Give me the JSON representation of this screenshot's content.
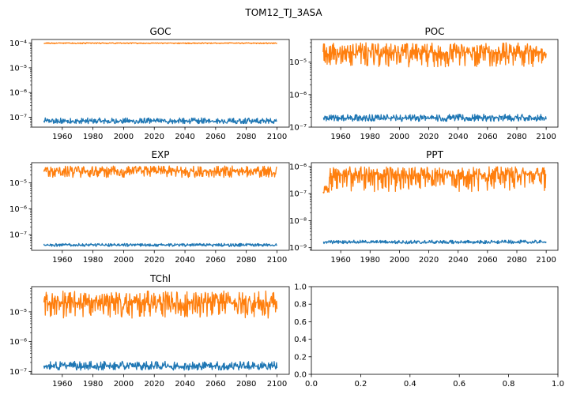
{
  "figure": {
    "suptitle": "TOM12_TJ_3ASA"
  },
  "colors": {
    "series_blue": "#1f77b4",
    "series_orange": "#ff7f0e",
    "axes": "#000000",
    "background": "#ffffff"
  },
  "chart_data": [
    {
      "type": "line",
      "title": "GOC",
      "yscale": "log",
      "xlim": [
        1940,
        2108
      ],
      "ylim": [
        4e-08,
        0.00014
      ],
      "xticks": [
        1960,
        1980,
        2000,
        2020,
        2040,
        2060,
        2080,
        2100
      ],
      "yticks": [
        1e-07,
        1e-06,
        1e-05,
        0.0001
      ],
      "yticklabels": [
        "10⁻⁷",
        "10⁻⁶",
        "10⁻⁵",
        "10⁻⁴"
      ],
      "series": [
        {
          "color": "#1f77b4",
          "x_start": 1948,
          "x_end": 2100,
          "level": 7e-08,
          "band_low": 5.5e-08,
          "band_high": 9.5e-08
        },
        {
          "color": "#ff7f0e",
          "x_start": 1948,
          "x_end": 2100,
          "level": 0.0001,
          "band_low": 9.4e-05,
          "band_high": 0.000104
        }
      ]
    },
    {
      "type": "line",
      "title": "POC",
      "yscale": "log",
      "xlim": [
        1940,
        2108
      ],
      "ylim": [
        1e-07,
        5e-05
      ],
      "xticks": [
        1960,
        1980,
        2000,
        2020,
        2040,
        2060,
        2080,
        2100
      ],
      "yticks": [
        1e-07,
        1e-06,
        1e-05
      ],
      "yticklabels": [
        "10⁻⁷",
        "10⁻⁶",
        "10⁻⁵"
      ],
      "series": [
        {
          "color": "#1f77b4",
          "x_start": 1948,
          "x_end": 2100,
          "level": 1.9e-07,
          "band_low": 1.5e-07,
          "band_high": 2.5e-07
        },
        {
          "color": "#ff7f0e",
          "x_start": 1948,
          "x_end": 2100,
          "level": 2e-05,
          "band_low": 7e-06,
          "band_high": 4e-05
        }
      ]
    },
    {
      "type": "line",
      "title": "EXP",
      "yscale": "log",
      "xlim": [
        1940,
        2108
      ],
      "ylim": [
        2.5e-08,
        6e-05
      ],
      "xticks": [
        1960,
        1980,
        2000,
        2020,
        2040,
        2060,
        2080,
        2100
      ],
      "yticks": [
        1e-07,
        1e-06,
        1e-05
      ],
      "yticklabels": [
        "10⁻⁷",
        "10⁻⁶",
        "10⁻⁵"
      ],
      "series": [
        {
          "color": "#1f77b4",
          "x_start": 1948,
          "x_end": 2100,
          "level": 4e-08,
          "band_low": 3.5e-08,
          "band_high": 4.6e-08
        },
        {
          "color": "#ff7f0e",
          "x_start": 1948,
          "x_end": 2100,
          "level": 2.8e-05,
          "band_low": 1.6e-05,
          "band_high": 4.5e-05
        }
      ]
    },
    {
      "type": "line",
      "title": "PPT",
      "yscale": "log",
      "xlim": [
        1940,
        2108
      ],
      "ylim": [
        8e-10,
        1.4e-06
      ],
      "xticks": [
        1960,
        1980,
        2000,
        2020,
        2040,
        2060,
        2080,
        2100
      ],
      "yticks": [
        1e-09,
        1e-08,
        1e-07,
        1e-06
      ],
      "yticklabels": [
        "10⁻⁹",
        "10⁻⁸",
        "10⁻⁷",
        "10⁻⁶"
      ],
      "series": [
        {
          "color": "#1f77b4",
          "x_start": 1948,
          "x_end": 2100,
          "level": 1.6e-09,
          "band_low": 1.4e-09,
          "band_high": 1.9e-09
        },
        {
          "color": "#ff7f0e",
          "x_start": 1948,
          "x_end": 2100,
          "level": 5e-07,
          "band_low": 1.2e-07,
          "band_high": 1e-06,
          "early_level": 1.3e-07,
          "early_until": 1952
        }
      ]
    },
    {
      "type": "line",
      "title": "TChl",
      "yscale": "log",
      "xlim": [
        1940,
        2108
      ],
      "ylim": [
        8e-08,
        7e-05
      ],
      "xticks": [
        1960,
        1980,
        2000,
        2020,
        2040,
        2060,
        2080,
        2100
      ],
      "yticks": [
        1e-07,
        1e-06,
        1e-05
      ],
      "yticklabels": [
        "10⁻⁷",
        "10⁻⁶",
        "10⁻⁵"
      ],
      "series": [
        {
          "color": "#1f77b4",
          "x_start": 1948,
          "x_end": 2100,
          "level": 1.5e-07,
          "band_low": 1.1e-07,
          "band_high": 2.2e-07
        },
        {
          "color": "#ff7f0e",
          "x_start": 1948,
          "x_end": 2100,
          "level": 2e-05,
          "band_low": 6e-06,
          "band_high": 5e-05
        }
      ]
    },
    {
      "type": "line",
      "title": "",
      "yscale": "linear",
      "xlim": [
        0,
        1
      ],
      "ylim": [
        0,
        1
      ],
      "xticks": [
        0.0,
        0.2,
        0.4,
        0.6,
        0.8,
        1.0
      ],
      "xticklabels": [
        "0.0",
        "0.2",
        "0.4",
        "0.6",
        "0.8",
        "1.0"
      ],
      "yticks": [
        0.0,
        0.2,
        0.4,
        0.6,
        0.8,
        1.0
      ],
      "yticklabels": [
        "0.0",
        "0.2",
        "0.4",
        "0.6",
        "0.8",
        "1.0"
      ],
      "series": []
    }
  ]
}
